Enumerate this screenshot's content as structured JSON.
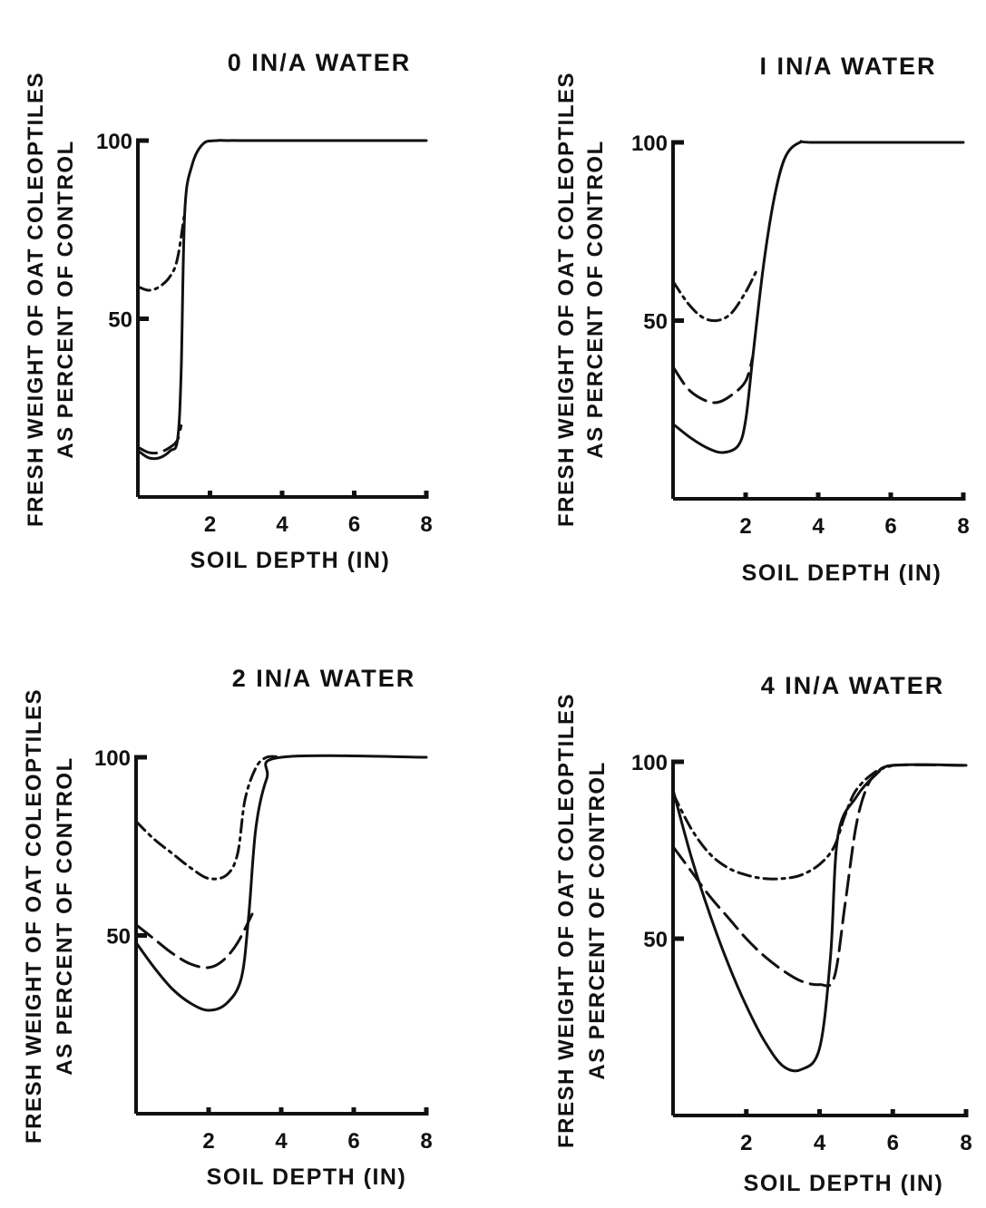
{
  "figure": {
    "line_color": "#111111",
    "background": "#ffffff"
  },
  "chart_data": [
    {
      "type": "line",
      "title": "0 IN/A WATER",
      "xlabel": "SOIL DEPTH (IN)",
      "ylabel_line1": "FRESH WEIGHT OF OAT COLEOPTILES",
      "ylabel_line2": "AS PERCENT OF CONTROL",
      "xlim": [
        0,
        8
      ],
      "ylim": [
        0,
        100
      ],
      "xticks": [
        2,
        4,
        6,
        8
      ],
      "xtick_labels": [
        "2",
        "4",
        "6",
        "8"
      ],
      "yticks": [
        50,
        100
      ],
      "ytick_labels": [
        "50",
        "100"
      ],
      "grid": false,
      "series": [
        {
          "style": "solid",
          "x": [
            0,
            0.3,
            0.6,
            0.9,
            1.1,
            1.2,
            1.3,
            1.5,
            1.8,
            2.2,
            3,
            8
          ],
          "y": [
            13,
            11,
            11,
            13,
            16,
            35,
            80,
            93,
            99,
            100,
            100,
            100
          ]
        },
        {
          "style": "dashed",
          "x": [
            0,
            0.3,
            0.6,
            0.9,
            1.1,
            1.2
          ],
          "y": [
            14,
            12.5,
            12.5,
            14,
            16,
            20
          ]
        },
        {
          "style": "dash-dot",
          "x": [
            0,
            0.3,
            0.6,
            0.9,
            1.1,
            1.3
          ],
          "y": [
            59,
            58,
            59,
            62,
            67,
            80
          ]
        }
      ]
    },
    {
      "type": "line",
      "title": "I IN/A WATER",
      "xlabel": "SOIL DEPTH (IN)",
      "ylabel_line1": "FRESH WEIGHT OF OAT COLEOPTILES",
      "ylabel_line2": "AS PERCENT OF CONTROL",
      "xlim": [
        0,
        8
      ],
      "ylim": [
        0,
        100
      ],
      "xticks": [
        2,
        4,
        6,
        8
      ],
      "xtick_labels": [
        "2",
        "4",
        "6",
        "8"
      ],
      "yticks": [
        50,
        100
      ],
      "ytick_labels": [
        "50",
        "100"
      ],
      "grid": false,
      "series": [
        {
          "style": "solid",
          "x": [
            0,
            0.5,
            1,
            1.4,
            1.8,
            2.0,
            2.2,
            2.5,
            2.8,
            3.1,
            3.5,
            4,
            8
          ],
          "y": [
            21,
            17,
            14,
            13,
            15,
            22,
            40,
            66,
            85,
            96,
            100,
            100,
            100
          ]
        },
        {
          "style": "dashed",
          "x": [
            0,
            0.4,
            0.8,
            1.2,
            1.6,
            2.0,
            2.2
          ],
          "y": [
            37,
            31,
            28,
            27,
            29,
            33,
            40
          ]
        },
        {
          "style": "dash-dot",
          "x": [
            0,
            0.4,
            0.8,
            1.2,
            1.6,
            2.0,
            2.3
          ],
          "y": [
            61,
            55,
            51,
            50,
            52,
            58,
            64
          ]
        }
      ]
    },
    {
      "type": "line",
      "title": "2  IN/A WATER",
      "xlabel": "SOIL DEPTH (IN)",
      "ylabel_line1": "FRESH WEIGHT OF OAT COLEOPTILES",
      "ylabel_line2": "AS PERCENT OF CONTROL",
      "xlim": [
        0,
        8
      ],
      "ylim": [
        0,
        100
      ],
      "xticks": [
        2,
        4,
        6,
        8
      ],
      "xtick_labels": [
        "2",
        "4",
        "6",
        "8"
      ],
      "yticks": [
        50,
        100
      ],
      "ytick_labels": [
        "50",
        "100"
      ],
      "grid": false,
      "series": [
        {
          "style": "solid",
          "x": [
            0,
            0.5,
            1,
            1.5,
            2,
            2.5,
            2.9,
            3.1,
            3.3,
            3.6,
            4,
            8
          ],
          "y": [
            48,
            41,
            35,
            31,
            29,
            31,
            38,
            55,
            80,
            94,
            100,
            100
          ]
        },
        {
          "style": "dashed",
          "x": [
            0,
            0.5,
            1,
            1.5,
            2,
            2.4,
            2.8,
            3.2
          ],
          "y": [
            53,
            49,
            45,
            42,
            41,
            43,
            48,
            56
          ]
        },
        {
          "style": "dash-dot",
          "x": [
            0,
            0.5,
            1,
            1.5,
            2,
            2.5,
            2.8,
            3,
            3.3,
            3.6,
            4
          ],
          "y": [
            82,
            77,
            73,
            69,
            66,
            67,
            73,
            88,
            97,
            100,
            100
          ]
        }
      ]
    },
    {
      "type": "line",
      "title": "4  IN/A WATER",
      "xlabel": "SOIL DEPTH (IN)",
      "ylabel_line1": "FRESH WEIGHT OF OAT COLEOPTILES",
      "ylabel_line2": "AS PERCENT OF CONTROL",
      "xlim": [
        0,
        8
      ],
      "ylim": [
        0,
        100
      ],
      "xticks": [
        2,
        4,
        6,
        8
      ],
      "xtick_labels": [
        "2",
        "4",
        "6",
        "8"
      ],
      "yticks": [
        50,
        100
      ],
      "ytick_labels": [
        "50",
        "100"
      ],
      "grid": false,
      "series": [
        {
          "style": "solid",
          "x": [
            0,
            0.5,
            1,
            1.5,
            2,
            2.5,
            3,
            3.5,
            4,
            4.3,
            4.5,
            5,
            5.5,
            6,
            8
          ],
          "y": [
            92,
            73,
            57,
            43,
            31,
            21,
            14,
            13,
            19,
            45,
            79,
            90,
            96,
            99,
            99
          ]
        },
        {
          "style": "dashed",
          "x": [
            0,
            0.5,
            1,
            1.5,
            2,
            2.5,
            3,
            3.5,
            4,
            4.4,
            4.7,
            5,
            5.3,
            5.6,
            6,
            8
          ],
          "y": [
            76,
            69,
            62,
            56,
            50,
            45,
            41,
            38,
            37,
            39,
            60,
            82,
            93,
            97,
            99,
            99
          ]
        },
        {
          "style": "dash-dot",
          "x": [
            0,
            0.5,
            1,
            1.5,
            2,
            2.5,
            3,
            3.5,
            4,
            4.4,
            4.7,
            5,
            5.5,
            6
          ],
          "y": [
            91,
            81,
            74,
            70,
            68,
            67,
            67,
            68,
            71,
            76,
            85,
            92,
            97,
            99
          ]
        }
      ]
    }
  ]
}
